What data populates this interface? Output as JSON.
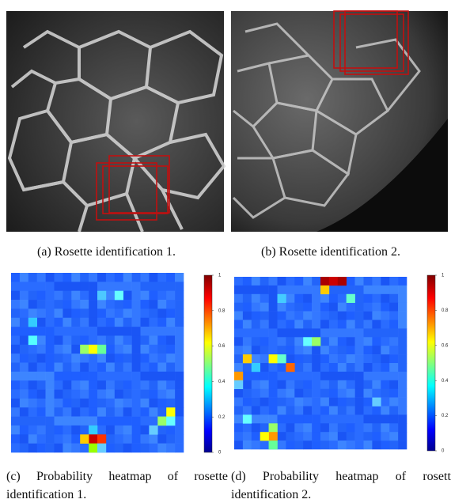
{
  "figures": [
    {
      "caption": "(a) Rosette identification 1."
    },
    {
      "caption": "(b) Rosette identification 2."
    }
  ],
  "heatmaps": [
    {
      "caption": [
        "(c) Probability heatmap of rosette",
        "identification 1."
      ],
      "colorbar_ticks": [
        1,
        0.8,
        0.6,
        0.4,
        0.2,
        0
      ]
    },
    {
      "caption": [
        "(d) Probability heatmap of rosette",
        "identification 2."
      ],
      "colorbar_ticks": [
        1,
        0.8,
        0.6,
        0.4,
        0.2,
        0
      ]
    }
  ]
}
